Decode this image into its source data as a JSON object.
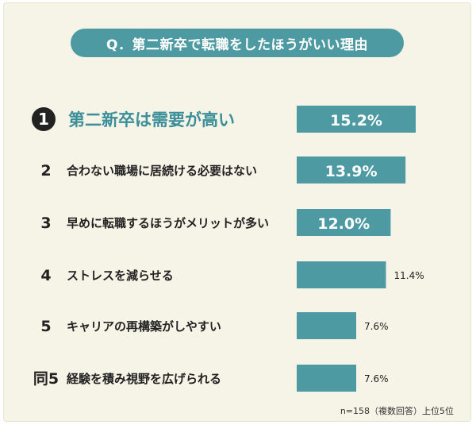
{
  "title": "Q．第二新卒で転職をしたほうがいい理由",
  "footnote": "n=158（複数回答）上位5位",
  "colors": {
    "bar": "#4e9aa2",
    "title_bg": "#4e9aa2",
    "highlight_text": "#3a8f99",
    "rank_badge": "#222222",
    "background": "#f6f3e7",
    "text": "#222222"
  },
  "chart_data": {
    "type": "bar",
    "orientation": "horizontal",
    "title": "Q．第二新卒で転職をしたほうがいい理由",
    "unit": "%",
    "xlim": [
      0,
      20
    ],
    "categories": [
      "第二新卒は需要が高い",
      "合わない職場に居続ける必要はない",
      "早めに転職するほうがメリットが多い",
      "ストレスを減らせる",
      "キャリアの再構築がしやすい",
      "経験を積み視野を広げられる"
    ],
    "ranks": [
      "1",
      "2",
      "3",
      "4",
      "5",
      "同5"
    ],
    "values": [
      15.2,
      13.9,
      12.0,
      11.4,
      7.6,
      7.6
    ],
    "value_labels": [
      "15.2%",
      "13.9%",
      "12.0%",
      "11.4%",
      "7.6%",
      "7.6%"
    ],
    "label_inside": [
      true,
      true,
      true,
      false,
      false,
      false
    ],
    "highlight_index": 0
  }
}
